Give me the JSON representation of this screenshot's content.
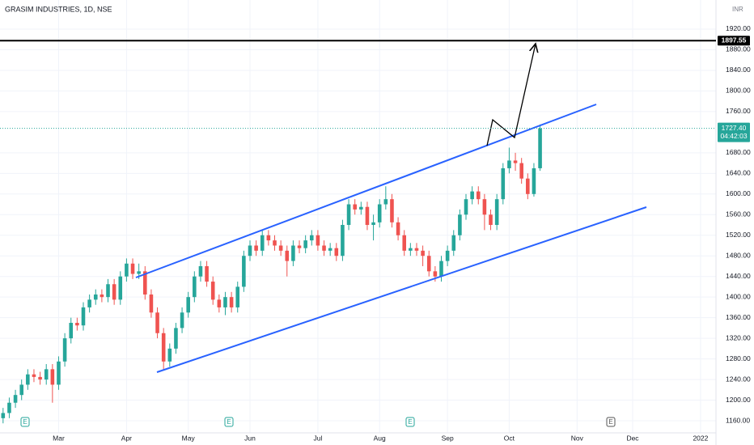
{
  "chart_data": {
    "type": "candlestick",
    "title": "GRASIM INDUSTRIES, 1D, NSE",
    "currency": "INR",
    "categories": [
      null,
      null,
      null,
      null,
      null,
      null,
      null,
      null,
      null,
      "Mar",
      null,
      null,
      null,
      null,
      null,
      null,
      null,
      null,
      null,
      null,
      "Apr",
      null,
      null,
      null,
      null,
      null,
      null,
      null,
      null,
      null,
      "May",
      null,
      null,
      null,
      null,
      null,
      null,
      null,
      null,
      null,
      "Jun",
      null,
      null,
      null,
      null,
      null,
      null,
      null,
      null,
      null,
      null,
      "Jul",
      null,
      null,
      null,
      null,
      null,
      null,
      null,
      null,
      null,
      "Aug",
      null,
      null,
      null,
      null,
      null,
      null,
      null,
      null,
      null,
      null,
      "Sep",
      null,
      null,
      null,
      null,
      null,
      null,
      null,
      null,
      null,
      "Oct",
      null,
      null,
      null,
      null,
      null,
      null,
      null,
      null,
      null,
      null,
      "Nov",
      null,
      null,
      null,
      null,
      null,
      null,
      null,
      null,
      "Dec",
      null,
      null,
      null,
      null,
      null,
      null,
      null,
      null,
      null,
      null,
      "2022",
      null,
      null
    ],
    "open": [
      1165,
      1175,
      1195,
      1210,
      1230,
      1250,
      1245,
      1240,
      1260,
      1230,
      1275,
      1320,
      1350,
      1345,
      1380,
      1395,
      1405,
      1400,
      1425,
      1395,
      1440,
      1465,
      1445,
      1450,
      1405,
      1370,
      1330,
      1275,
      1300,
      1340,
      1370,
      1400,
      1440,
      1460,
      1430,
      1395,
      1380,
      1400,
      1380,
      1420,
      1480,
      1500,
      1490,
      1520,
      1510,
      1500,
      1490,
      1470,
      1500,
      1495,
      1510,
      1520,
      1500,
      1490,
      1495,
      1480,
      1540,
      1580,
      1570,
      1575,
      1540,
      1545,
      1580,
      1590,
      1545,
      1520,
      1490,
      1495,
      1490,
      1480,
      1450,
      1440,
      1470,
      1490,
      1520,
      1560,
      1590,
      1605,
      1590,
      1560,
      1540,
      1590,
      1650,
      1665,
      1660,
      1630,
      1600,
      1650,
      null,
      null,
      null,
      null,
      null,
      null,
      null,
      null,
      null,
      null,
      null,
      null,
      null,
      null,
      null,
      null,
      null,
      null,
      null,
      null,
      null,
      null,
      null,
      null,
      null,
      null,
      null,
      null
    ],
    "high": [
      1185,
      1205,
      1220,
      1240,
      1260,
      1260,
      1255,
      1270,
      1270,
      1285,
      1330,
      1360,
      1360,
      1390,
      1405,
      1415,
      1415,
      1435,
      1435,
      1450,
      1475,
      1475,
      1465,
      1460,
      1415,
      1380,
      1340,
      1310,
      1350,
      1380,
      1410,
      1450,
      1470,
      1470,
      1440,
      1405,
      1410,
      1410,
      1430,
      1490,
      1510,
      1510,
      1530,
      1530,
      1520,
      1510,
      1500,
      1510,
      1510,
      1520,
      1530,
      1530,
      1510,
      1505,
      1505,
      1550,
      1590,
      1590,
      1585,
      1585,
      1560,
      1590,
      1615,
      1600,
      1555,
      1530,
      1505,
      1505,
      1500,
      1490,
      1460,
      1480,
      1500,
      1530,
      1570,
      1600,
      1615,
      1615,
      1600,
      1570,
      1600,
      1660,
      1690,
      1680,
      1670,
      1640,
      1660,
      1735,
      null,
      null,
      null,
      null,
      null,
      null,
      null,
      null,
      null,
      null,
      null,
      null,
      null,
      null,
      null,
      null,
      null,
      null,
      null,
      null,
      null,
      null,
      null,
      null,
      null,
      null,
      null,
      null
    ],
    "low": [
      1155,
      1165,
      1185,
      1200,
      1220,
      1235,
      1230,
      1230,
      1195,
      1220,
      1265,
      1310,
      1335,
      1335,
      1370,
      1385,
      1390,
      1390,
      1385,
      1385,
      1430,
      1435,
      1435,
      1395,
      1360,
      1320,
      1260,
      1265,
      1290,
      1330,
      1360,
      1390,
      1430,
      1420,
      1385,
      1370,
      1365,
      1370,
      1370,
      1410,
      1470,
      1480,
      1480,
      1500,
      1490,
      1480,
      1440,
      1460,
      1485,
      1485,
      1500,
      1490,
      1480,
      1480,
      1470,
      1470,
      1530,
      1560,
      1560,
      1530,
      1510,
      1535,
      1570,
      1535,
      1510,
      1480,
      1480,
      1480,
      1460,
      1440,
      1430,
      1430,
      1460,
      1480,
      1510,
      1550,
      1580,
      1580,
      1530,
      1530,
      1530,
      1580,
      1640,
      1645,
      1620,
      1590,
      1595,
      1645,
      null,
      null,
      null,
      null,
      null,
      null,
      null,
      null,
      null,
      null,
      null,
      null,
      null,
      null,
      null,
      null,
      null,
      null,
      null,
      null,
      null,
      null,
      null,
      null,
      null,
      null,
      null,
      null
    ],
    "close": [
      1175,
      1195,
      1210,
      1230,
      1250,
      1245,
      1240,
      1260,
      1230,
      1275,
      1320,
      1350,
      1345,
      1380,
      1395,
      1405,
      1400,
      1425,
      1395,
      1440,
      1465,
      1445,
      1450,
      1405,
      1370,
      1330,
      1275,
      1300,
      1340,
      1370,
      1400,
      1440,
      1460,
      1430,
      1395,
      1380,
      1400,
      1380,
      1420,
      1480,
      1500,
      1490,
      1520,
      1510,
      1500,
      1490,
      1470,
      1500,
      1495,
      1510,
      1520,
      1500,
      1490,
      1495,
      1480,
      1540,
      1580,
      1570,
      1575,
      1540,
      1545,
      1580,
      1590,
      1545,
      1520,
      1490,
      1495,
      1490,
      1480,
      1450,
      1440,
      1470,
      1490,
      1520,
      1560,
      1590,
      1605,
      1590,
      1560,
      1540,
      1590,
      1650,
      1665,
      1660,
      1630,
      1600,
      1650,
      1727.4,
      null,
      null,
      null,
      null,
      null,
      null,
      null,
      null,
      null,
      null,
      null,
      null,
      null,
      null,
      null,
      null,
      null,
      null,
      null,
      null,
      null,
      null,
      null,
      null,
      null,
      null,
      null,
      null
    ],
    "last_price_label": "1727.40",
    "countdown": "04:42:03",
    "up_color": "#26a69a",
    "down_color": "#ef5350",
    "hline": {
      "value": 1897.55,
      "label": "1897.55"
    },
    "earnings_markers": [
      "E",
      "E",
      "E",
      "E"
    ],
    "ylim": [
      1136.5,
      1976.5
    ],
    "yticks": [
      {
        "value": 1160,
        "label": "1160.00"
      },
      {
        "value": 1200,
        "label": "1200.00"
      },
      {
        "value": 1240,
        "label": "1240.00"
      },
      {
        "value": 1280,
        "label": "1280.00"
      },
      {
        "value": 1320,
        "label": "1320.00"
      },
      {
        "value": 1360,
        "label": "1360.00"
      },
      {
        "value": 1400,
        "label": "1400.00"
      },
      {
        "value": 1440,
        "label": "1440.00"
      },
      {
        "value": 1480,
        "label": "1480.00"
      },
      {
        "value": 1520,
        "label": "1520.00"
      },
      {
        "value": 1560,
        "label": "1560.00"
      },
      {
        "value": 1600,
        "label": "1600.00"
      },
      {
        "value": 1640,
        "label": "1640.00"
      },
      {
        "value": 1680,
        "label": "1680.00"
      },
      {
        "value": 1760,
        "label": "1760.00"
      },
      {
        "value": 1800,
        "label": "1800.00"
      },
      {
        "value": 1840,
        "label": "1840.00"
      },
      {
        "value": 1880,
        "label": "1880.00"
      },
      {
        "value": 1920,
        "label": "1920.00"
      }
    ],
    "grid": true
  }
}
